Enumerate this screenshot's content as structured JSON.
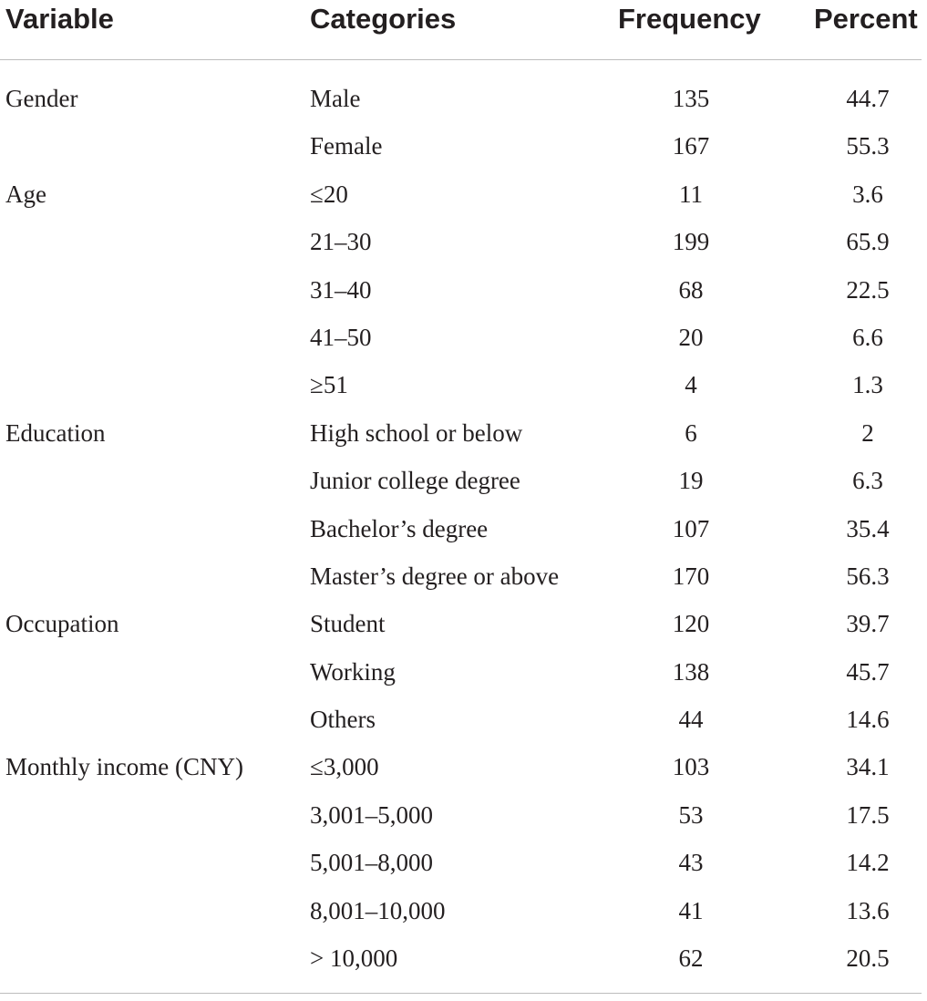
{
  "headers": {
    "variable": "Variable",
    "categories": "Categories",
    "frequency": "Frequency",
    "percent": "Percent"
  },
  "rows": [
    {
      "variable": "Gender",
      "category": "Male",
      "frequency": "135",
      "percent": "44.7"
    },
    {
      "variable": "",
      "category": "Female",
      "frequency": "167",
      "percent": "55.3"
    },
    {
      "variable": "Age",
      "category": "≤20",
      "frequency": "11",
      "percent": "3.6"
    },
    {
      "variable": "",
      "category": "21–30",
      "frequency": "199",
      "percent": "65.9"
    },
    {
      "variable": "",
      "category": "31–40",
      "frequency": "68",
      "percent": "22.5"
    },
    {
      "variable": "",
      "category": "41–50",
      "frequency": "20",
      "percent": "6.6"
    },
    {
      "variable": "",
      "category": "≥51",
      "frequency": "4",
      "percent": "1.3"
    },
    {
      "variable": "Education",
      "category": "High school or below",
      "frequency": "6",
      "percent": "2"
    },
    {
      "variable": "",
      "category": "Junior college degree",
      "frequency": "19",
      "percent": "6.3"
    },
    {
      "variable": "",
      "category": "Bachelor’s degree",
      "frequency": "107",
      "percent": "35.4"
    },
    {
      "variable": "",
      "category": "Master’s degree or above",
      "frequency": "170",
      "percent": "56.3"
    },
    {
      "variable": "Occupation",
      "category": "Student",
      "frequency": "120",
      "percent": "39.7"
    },
    {
      "variable": "",
      "category": "Working",
      "frequency": "138",
      "percent": "45.7"
    },
    {
      "variable": "",
      "category": "Others",
      "frequency": "44",
      "percent": "14.6"
    },
    {
      "variable": "Monthly income (CNY)",
      "category": "≤3,000",
      "frequency": "103",
      "percent": "34.1"
    },
    {
      "variable": "",
      "category": "3,001–5,000",
      "frequency": "53",
      "percent": "17.5"
    },
    {
      "variable": "",
      "category": "5,001–8,000",
      "frequency": "43",
      "percent": "14.2"
    },
    {
      "variable": "",
      "category": "8,001–10,000",
      "frequency": "41",
      "percent": "13.6"
    },
    {
      "variable": "",
      "category": "> 10,000",
      "frequency": "62",
      "percent": "20.5"
    }
  ]
}
